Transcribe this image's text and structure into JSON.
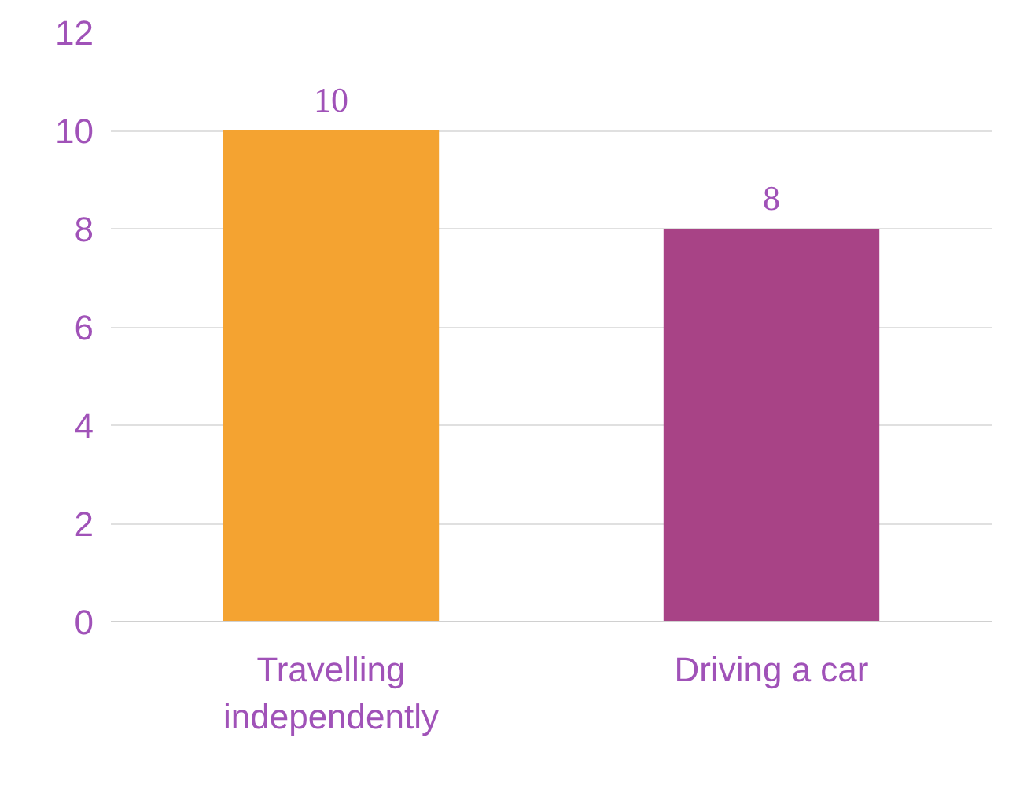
{
  "chart_data": {
    "type": "bar",
    "categories": [
      "Travelling independently",
      "Driving a car"
    ],
    "values": [
      10,
      8
    ],
    "colors": [
      "#f4a331",
      "#a84386"
    ],
    "ylim": [
      0,
      12
    ],
    "yticks": [
      0,
      2,
      4,
      6,
      8,
      10,
      12
    ],
    "grid": "y",
    "data_labels": true
  }
}
